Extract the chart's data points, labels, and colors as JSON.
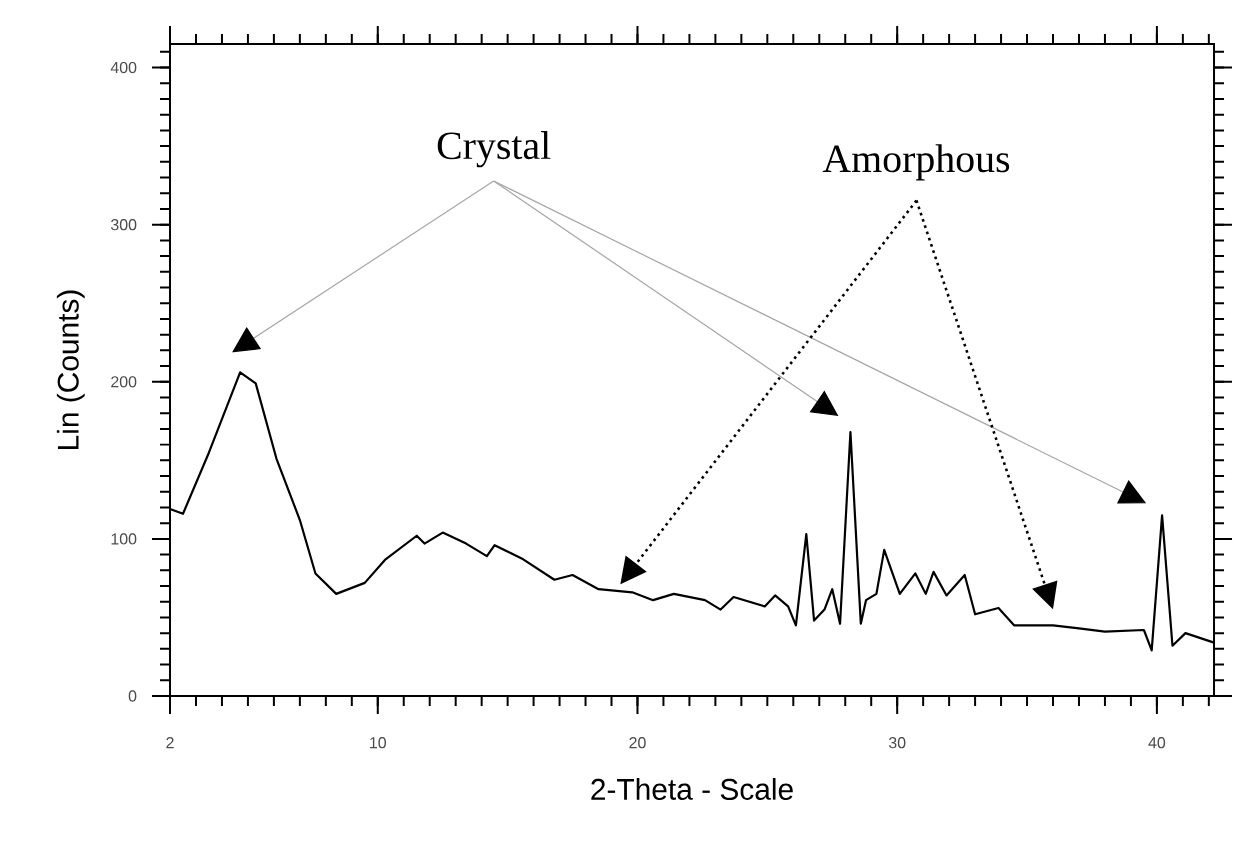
{
  "chart_data": {
    "type": "line",
    "xlabel": "2-Theta - Scale",
    "ylabel": "Lin (Counts)",
    "x": [
      2.0,
      2.5,
      3.5,
      4.7,
      5.3,
      6.1,
      7.0,
      7.6,
      8.4,
      9.5,
      10.3,
      11.5,
      11.8,
      12.5,
      13.4,
      14.2,
      14.5,
      15.6,
      16.8,
      17.5,
      18.5,
      19.8,
      20.6,
      21.4,
      22.6,
      23.2,
      23.7,
      24.9,
      25.3,
      25.8,
      26.1,
      26.5,
      26.8,
      27.2,
      27.5,
      27.8,
      28.2,
      28.6,
      28.8,
      29.2,
      29.5,
      30.1,
      30.7,
      31.1,
      31.4,
      31.9,
      32.6,
      33.0,
      33.9,
      34.5,
      36.0,
      37.0,
      38.0,
      39.5,
      39.8,
      40.2,
      40.6,
      41.1,
      42.2
    ],
    "series": [
      {
        "color": "#000000",
        "values": [
          119,
          116,
          155,
          206,
          199,
          151,
          112,
          78,
          65,
          72,
          87,
          102,
          97,
          104,
          97,
          89,
          96,
          87,
          74,
          77,
          68,
          66,
          61,
          65,
          61,
          55,
          63,
          57,
          64,
          57,
          45,
          103,
          48,
          55,
          68,
          46,
          168,
          46,
          61,
          65,
          93,
          65,
          78,
          65,
          79,
          64,
          77,
          52,
          56,
          45,
          45,
          43,
          41,
          42,
          29,
          115,
          32,
          40,
          34
        ]
      }
    ],
    "xlim": [
      2,
      42.2
    ],
    "ylim": [
      0,
      415
    ],
    "xticks": [
      2,
      10,
      20,
      30,
      40
    ],
    "yticks": [
      0,
      100,
      200,
      300,
      400
    ],
    "grid": false,
    "marker": "none",
    "line_style": "solid",
    "annotations": [
      "Crystal",
      "Amorphous"
    ]
  }
}
